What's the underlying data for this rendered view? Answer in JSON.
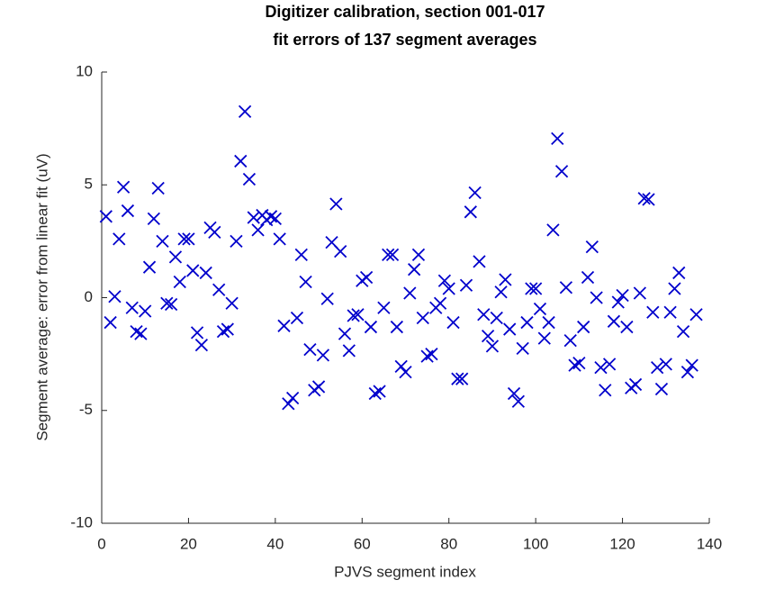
{
  "chart_data": {
    "type": "scatter",
    "title": "Digitizer calibration, section 001-017",
    "subtitle": "fit errors of 137 segment averages",
    "x_label": "PJVS segment index",
    "y_label": "Segment average: error from linear fit (uV)",
    "marker": "x",
    "color": "#0000cc",
    "xlim": [
      0,
      140
    ],
    "xticks": [
      0,
      20,
      40,
      60,
      80,
      100,
      120,
      140
    ],
    "ylim": [
      -10,
      10
    ],
    "yticks": [
      -10,
      -5,
      0,
      5,
      10
    ],
    "x": [
      1,
      2,
      3,
      4,
      5,
      6,
      7,
      8,
      9,
      10,
      11,
      12,
      13,
      14,
      15,
      16,
      17,
      18,
      19,
      20,
      21,
      22,
      23,
      24,
      25,
      26,
      27,
      28,
      29,
      30,
      31,
      32,
      33,
      34,
      35,
      36,
      37,
      38,
      39,
      40,
      41,
      42,
      43,
      44,
      45,
      46,
      47,
      48,
      49,
      50,
      51,
      52,
      53,
      54,
      55,
      56,
      57,
      58,
      59,
      60,
      61,
      62,
      63,
      64,
      65,
      66,
      67,
      68,
      69,
      70,
      71,
      72,
      73,
      74,
      75,
      76,
      77,
      78,
      79,
      80,
      81,
      82,
      83,
      84,
      85,
      86,
      87,
      88,
      89,
      90,
      91,
      92,
      93,
      94,
      95,
      96,
      97,
      98,
      99,
      100,
      101,
      102,
      103,
      104,
      105,
      106,
      107,
      108,
      109,
      110,
      111,
      112,
      113,
      114,
      115,
      116,
      117,
      118,
      119,
      120,
      121,
      122,
      123,
      124,
      125,
      126,
      127,
      128,
      129,
      130,
      131,
      132,
      133,
      134,
      135,
      136,
      137
    ],
    "values": [
      3.6,
      -1.1,
      0.05,
      2.6,
      4.9,
      3.85,
      -0.45,
      -1.5,
      -1.6,
      -0.6,
      1.35,
      3.5,
      4.85,
      2.5,
      -0.25,
      -0.3,
      1.8,
      0.7,
      2.6,
      2.6,
      1.2,
      -1.55,
      -2.1,
      1.1,
      3.1,
      2.9,
      0.35,
      -1.5,
      -1.4,
      -0.25,
      2.5,
      6.05,
      8.25,
      5.25,
      3.55,
      3.0,
      3.65,
      3.45,
      3.6,
      3.5,
      2.6,
      -1.25,
      -4.7,
      -4.45,
      -0.9,
      1.9,
      0.7,
      -2.3,
      -4.1,
      -3.95,
      -2.55,
      -0.05,
      2.45,
      4.15,
      2.05,
      -1.6,
      -2.35,
      -0.8,
      -0.75,
      0.75,
      0.9,
      -1.3,
      -4.25,
      -4.15,
      -0.45,
      1.9,
      1.9,
      -1.3,
      -3.05,
      -3.3,
      0.2,
      1.25,
      1.9,
      -0.9,
      -2.6,
      -2.5,
      -0.45,
      -0.25,
      0.75,
      0.4,
      -1.1,
      -3.6,
      -3.6,
      0.55,
      3.8,
      4.65,
      1.6,
      -0.75,
      -1.7,
      -2.15,
      -0.9,
      0.25,
      0.8,
      -1.4,
      -4.25,
      -4.6,
      -2.25,
      -1.1,
      0.4,
      0.4,
      -0.5,
      -1.8,
      -1.1,
      3.0,
      7.05,
      5.6,
      0.45,
      -1.9,
      -3.0,
      -2.9,
      -1.3,
      0.9,
      2.25,
      0.0,
      -3.1,
      -4.1,
      -2.95,
      -1.05,
      -0.2,
      0.1,
      -1.3,
      -4.0,
      -3.85,
      0.2,
      4.4,
      4.35,
      -0.65,
      -3.1,
      -4.05,
      -2.95,
      -0.65,
      0.4,
      1.1,
      -1.5,
      -3.3,
      -3.0,
      -0.75
    ]
  }
}
